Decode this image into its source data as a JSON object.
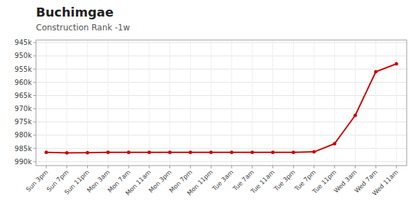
{
  "chart_data": {
    "type": "line",
    "title": "Buchimgae",
    "subtitle": "Construction Rank -1w",
    "categories": [
      "Sun 3pm",
      "Sun 7pm",
      "Sun 11pm",
      "Mon 3am",
      "Mon 7am",
      "Mon 11am",
      "Mon 3pm",
      "Mon 7pm",
      "Mon 11pm",
      "Tue 3am",
      "Tue 7am",
      "Tue 11am",
      "Tue 3pm",
      "Tue 7pm",
      "Tue 11pm",
      "Wed 3am",
      "Wed 7am",
      "Wed 11am"
    ],
    "values": [
      986500,
      986700,
      986600,
      986500,
      986500,
      986500,
      986500,
      986500,
      986500,
      986500,
      986500,
      986500,
      986500,
      986300,
      983200,
      972500,
      956000,
      953000
    ],
    "color": "#cc0000",
    "marker": "circle",
    "ylim": [
      991500,
      944000
    ],
    "yticks": [
      {
        "value": 945000,
        "label": "945k"
      },
      {
        "value": 950000,
        "label": "950k"
      },
      {
        "value": 955000,
        "label": "955k"
      },
      {
        "value": 960000,
        "label": "960k"
      },
      {
        "value": 965000,
        "label": "965k"
      },
      {
        "value": 970000,
        "label": "970k"
      },
      {
        "value": 975000,
        "label": "975k"
      },
      {
        "value": 980000,
        "label": "980k"
      },
      {
        "value": 985000,
        "label": "985k"
      },
      {
        "value": 990000,
        "label": "990k"
      }
    ],
    "grid": true
  }
}
